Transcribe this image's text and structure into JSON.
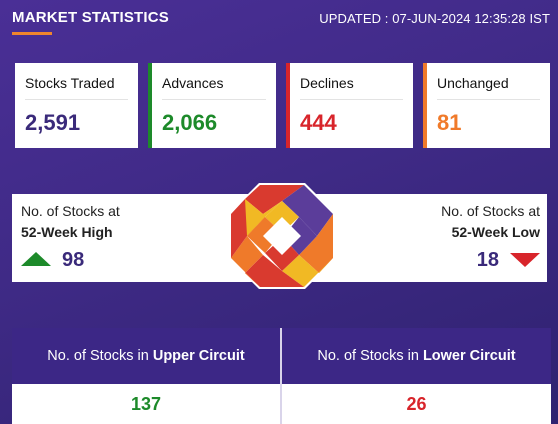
{
  "header": {
    "title": "MARKET STATISTICS",
    "updated": "UPDATED : 07-JUN-2024 12:35:28 IST"
  },
  "cards": {
    "stocks_traded": {
      "label": "Stocks Traded",
      "value": "2,591"
    },
    "advances": {
      "label": "Advances",
      "value": "2,066"
    },
    "declines": {
      "label": "Declines",
      "value": "444"
    },
    "unchanged": {
      "label": "Unchanged",
      "value": "81"
    }
  },
  "week52": {
    "high": {
      "label_line1": "No. of Stocks at",
      "label_line2": "52-Week High",
      "value": "98",
      "icon": "arrow-up-icon"
    },
    "low": {
      "label_line1": "No. of Stocks at",
      "label_line2": "52-Week Low",
      "value": "18",
      "icon": "arrow-down-icon"
    }
  },
  "circuit": {
    "upper": {
      "prefix": "No. of Stocks in",
      "emphasis": "Upper Circuit",
      "value": "137"
    },
    "lower": {
      "prefix": "No. of Stocks in",
      "emphasis": "Lower Circuit",
      "value": "26"
    }
  },
  "colors": {
    "background": "#4a2f96",
    "advances": "#1d8a2a",
    "declines": "#d8252b",
    "unchanged": "#f07a2a",
    "accent": "#3a2a7a"
  }
}
